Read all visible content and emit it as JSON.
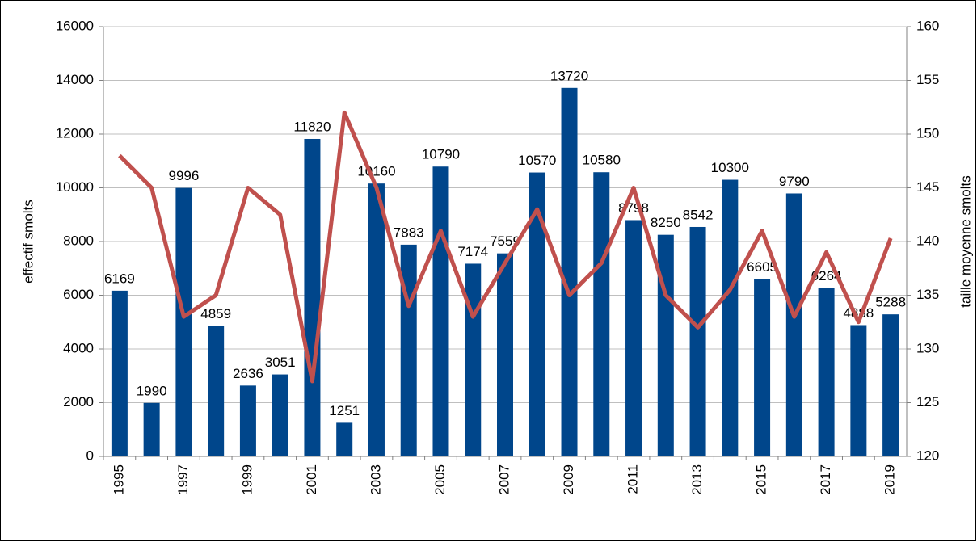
{
  "chart_data": {
    "type": "bar-line",
    "categories": [
      "1995",
      null,
      "1997",
      null,
      "1999",
      null,
      "2001",
      null,
      "2003",
      null,
      "2005",
      null,
      "2007",
      null,
      "2009",
      null,
      "2011",
      null,
      "2013",
      null,
      "2015",
      null,
      "2017",
      null,
      "2019"
    ],
    "y_label": "effectif smolts",
    "y2_label": "taille moyenne smolts",
    "series": [
      {
        "type": "bar",
        "color": "#00468b",
        "values": [
          6169,
          1990,
          9996,
          4859,
          2636,
          3051,
          11820,
          1251,
          10160,
          7883,
          10790,
          7174,
          7559,
          10570,
          13720,
          10580,
          8798,
          8250,
          8542,
          10300,
          6605,
          9790,
          6264,
          4888,
          5288
        ]
      },
      {
        "type": "line",
        "axis": "y2",
        "color": "#c0504d",
        "values": [
          148,
          145,
          133,
          135,
          145,
          142.5,
          127,
          152,
          145,
          134,
          141,
          133,
          138,
          143,
          135,
          138,
          145,
          135,
          132,
          135.5,
          141,
          133,
          139,
          132.5,
          140.3
        ]
      }
    ],
    "ylim": [
      0,
      16000
    ],
    "yticks": [
      0,
      2000,
      4000,
      6000,
      8000,
      10000,
      12000,
      14000,
      16000
    ],
    "y2lim": [
      120,
      160
    ],
    "y2ticks": [
      120,
      125,
      130,
      135,
      140,
      145,
      150,
      155,
      160
    ],
    "grid": true
  }
}
